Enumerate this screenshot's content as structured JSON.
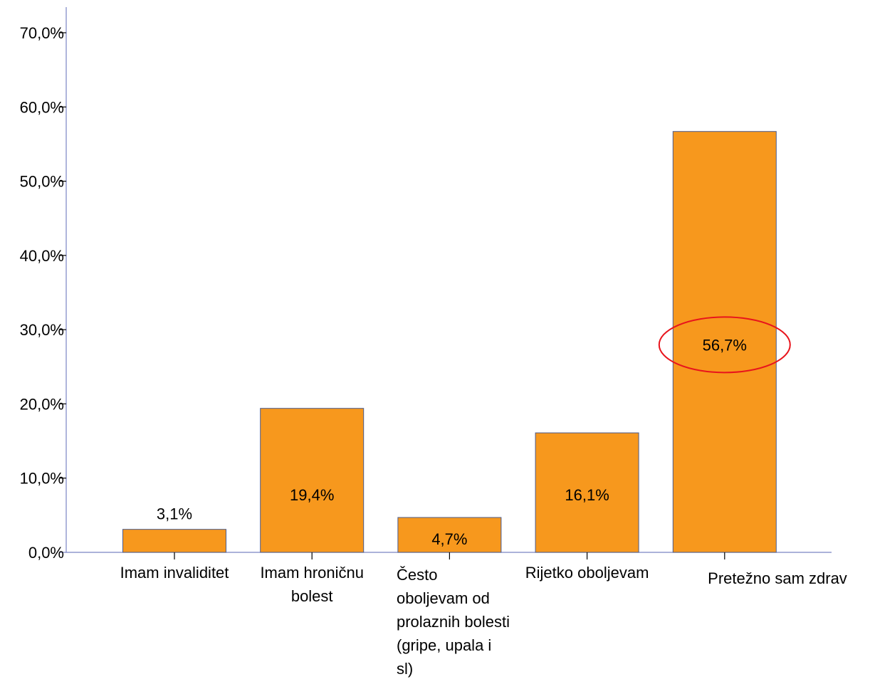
{
  "chart_data": {
    "type": "bar",
    "title": "",
    "xlabel": "",
    "ylabel": "",
    "ylim": [
      0,
      70
    ],
    "yticks": [
      "0,0%",
      "10,0%",
      "20,0%",
      "30,0%",
      "40,0%",
      "50,0%",
      "60,0%",
      "70,0%"
    ],
    "categories": [
      [
        "Imam invaliditet"
      ],
      [
        "Imam hroničnu",
        "bolest"
      ],
      [
        "Često",
        "oboljevam od",
        "prolaznih bolesti",
        "(gripe, upala i",
        "sl)"
      ],
      [
        "Rijetko oboljevam"
      ],
      [
        "Pretežno sam zdrav"
      ]
    ],
    "values": [
      3.1,
      19.4,
      4.7,
      16.1,
      56.7
    ],
    "value_labels": [
      "3,1%",
      "19,4%",
      "4,7%",
      "16,1%",
      "56,7%"
    ],
    "highlighted_label": "56,7%",
    "grid": false,
    "legend": "none",
    "colors": {
      "bar_fill": "#F7981D",
      "bar_stroke": "#4A5A8C",
      "axis": "#7A84C4",
      "highlight": "#E8141C"
    }
  }
}
